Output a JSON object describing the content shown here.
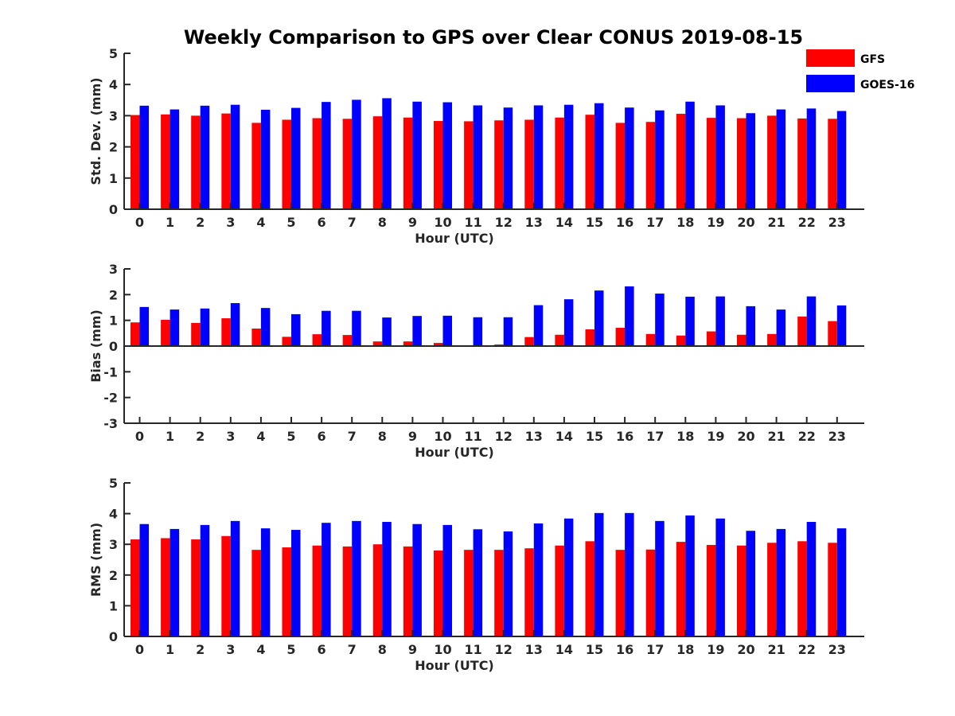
{
  "title": "Weekly Comparison to GPS over Clear CONUS 2019-08-15",
  "colors": {
    "GFS": "#ff0000",
    "GOES-16": "#0000ff"
  },
  "legend": {
    "placement": "top-right",
    "entries": [
      {
        "name": "GFS",
        "color": "#ff0000"
      },
      {
        "name": "GOES-16",
        "color": "#0000ff"
      }
    ]
  },
  "chart_data": [
    {
      "type": "bar",
      "ylabel": "Std. Dev. (mm)",
      "xlabel": "Hour (UTC)",
      "ylim": [
        0,
        5
      ],
      "yticks": [
        0,
        1,
        2,
        3,
        4,
        5
      ],
      "categories": [
        "0",
        "1",
        "2",
        "3",
        "4",
        "5",
        "6",
        "7",
        "8",
        "9",
        "10",
        "11",
        "12",
        "13",
        "14",
        "15",
        "16",
        "17",
        "18",
        "19",
        "20",
        "21",
        "22",
        "23"
      ],
      "series": [
        {
          "name": "GFS",
          "values": [
            3.02,
            3.04,
            3.0,
            3.07,
            2.77,
            2.87,
            2.92,
            2.9,
            2.98,
            2.94,
            2.83,
            2.82,
            2.85,
            2.87,
            2.94,
            3.03,
            2.77,
            2.8,
            3.06,
            2.93,
            2.92,
            3.0,
            2.91,
            2.9
          ]
        },
        {
          "name": "GOES-16",
          "values": [
            3.32,
            3.2,
            3.32,
            3.35,
            3.19,
            3.25,
            3.44,
            3.51,
            3.56,
            3.45,
            3.43,
            3.33,
            3.26,
            3.33,
            3.35,
            3.4,
            3.26,
            3.17,
            3.45,
            3.33,
            3.08,
            3.2,
            3.23,
            3.15
          ]
        }
      ]
    },
    {
      "type": "bar",
      "ylabel": "Bias (mm)",
      "xlabel": "Hour (UTC)",
      "ylim": [
        -3,
        3
      ],
      "yticks": [
        -3,
        -2,
        -1,
        0,
        1,
        2,
        3
      ],
      "categories": [
        "0",
        "1",
        "2",
        "3",
        "4",
        "5",
        "6",
        "7",
        "8",
        "9",
        "10",
        "11",
        "12",
        "13",
        "14",
        "15",
        "16",
        "17",
        "18",
        "19",
        "20",
        "21",
        "22",
        "23"
      ],
      "series": [
        {
          "name": "GFS",
          "values": [
            0.92,
            1.02,
            0.9,
            1.08,
            0.68,
            0.36,
            0.46,
            0.43,
            0.18,
            0.18,
            0.12,
            0.03,
            0.06,
            0.35,
            0.44,
            0.65,
            0.71,
            0.47,
            0.41,
            0.57,
            0.44,
            0.47,
            1.15,
            0.97
          ]
        },
        {
          "name": "GOES-16",
          "values": [
            1.52,
            1.42,
            1.46,
            1.67,
            1.48,
            1.24,
            1.37,
            1.37,
            1.11,
            1.17,
            1.18,
            1.12,
            1.12,
            1.59,
            1.82,
            2.16,
            2.32,
            2.04,
            1.92,
            1.93,
            1.55,
            1.42,
            1.93,
            1.58
          ]
        }
      ]
    },
    {
      "type": "bar",
      "ylabel": "RMS (mm)",
      "xlabel": "Hour (UTC)",
      "ylim": [
        0,
        5
      ],
      "yticks": [
        0,
        1,
        2,
        3,
        4,
        5
      ],
      "categories": [
        "0",
        "1",
        "2",
        "3",
        "4",
        "5",
        "6",
        "7",
        "8",
        "9",
        "10",
        "11",
        "12",
        "13",
        "14",
        "15",
        "16",
        "17",
        "18",
        "19",
        "20",
        "21",
        "22",
        "23"
      ],
      "series": [
        {
          "name": "GFS",
          "values": [
            3.16,
            3.2,
            3.16,
            3.27,
            2.82,
            2.9,
            2.96,
            2.93,
            3.0,
            2.93,
            2.8,
            2.82,
            2.82,
            2.87,
            2.96,
            3.1,
            2.82,
            2.83,
            3.08,
            2.98,
            2.96,
            3.05,
            3.1,
            3.05
          ]
        },
        {
          "name": "GOES-16",
          "values": [
            3.66,
            3.5,
            3.63,
            3.76,
            3.52,
            3.47,
            3.7,
            3.76,
            3.73,
            3.66,
            3.63,
            3.49,
            3.42,
            3.68,
            3.84,
            4.02,
            4.02,
            3.76,
            3.94,
            3.84,
            3.44,
            3.5,
            3.73,
            3.52
          ]
        }
      ]
    }
  ]
}
